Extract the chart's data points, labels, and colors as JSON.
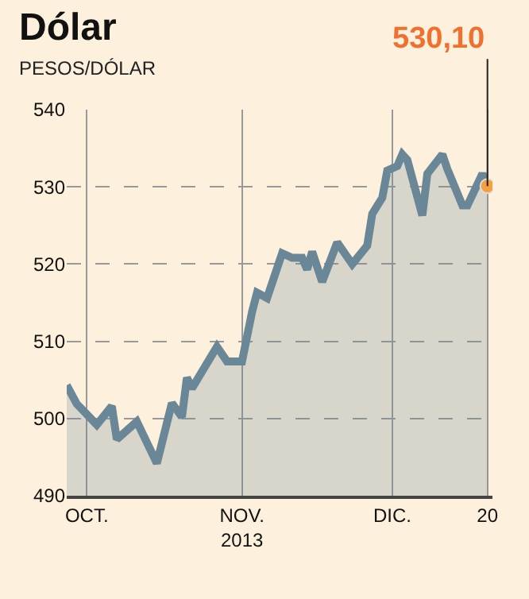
{
  "chart_data": {
    "type": "area",
    "title": "Dólar",
    "subtitle": "PESOS/DÓLAR",
    "x": [
      "2013-09-27",
      "2013-09-29",
      "2013-10-03",
      "2013-10-06",
      "2013-10-07",
      "2013-10-11",
      "2013-10-15",
      "2013-10-18",
      "2013-10-20",
      "2013-10-21",
      "2013-10-22",
      "2013-10-27",
      "2013-10-29",
      "2013-11-01",
      "2013-11-03",
      "2013-11-04",
      "2013-11-06",
      "2013-11-09",
      "2013-11-11",
      "2013-11-13",
      "2013-11-14",
      "2013-11-15",
      "2013-11-17",
      "2013-11-20",
      "2013-11-23",
      "2013-11-26",
      "2013-11-27",
      "2013-11-29",
      "2013-11-30",
      "2013-12-02",
      "2013-12-03",
      "2013-12-04",
      "2013-12-07",
      "2013-12-08",
      "2013-12-11",
      "2013-12-12",
      "2013-12-15",
      "2013-12-16",
      "2013-12-19",
      "2013-12-20"
    ],
    "series": [
      {
        "color": "#6a8797",
        "values": [
          504.3,
          501.9,
          499.2,
          501.6,
          497.3,
          499.6,
          494.2,
          502.0,
          500.2,
          505.3,
          503.9,
          509.3,
          507.4,
          507.4,
          513.8,
          516.3,
          515.6,
          521.4,
          520.8,
          520.8,
          519.3,
          521.6,
          517.7,
          522.8,
          520.0,
          522.4,
          526.5,
          528.6,
          532.1,
          532.7,
          534.2,
          533.5,
          526.3,
          531.7,
          534.2,
          532.3,
          527.6,
          527.6,
          531.7,
          530.1
        ]
      }
    ],
    "xlim": [
      "2013-09-27",
      "2013-12-21"
    ],
    "xticks": [
      {
        "value": "2013-10-01",
        "label": "OCT."
      },
      {
        "value": "2013-11-01",
        "label": "NOV.\n2013"
      },
      {
        "value": "2013-12-01",
        "label": "DIC."
      },
      {
        "value": "2013-12-20",
        "label": "20"
      }
    ],
    "ylim": [
      490,
      540
    ],
    "yticks": [
      490,
      500,
      510,
      520,
      530,
      540
    ],
    "grid": true,
    "annotations": [
      {
        "text": "530,10",
        "x": "2013-12-20",
        "y": 530.1
      }
    ]
  }
}
